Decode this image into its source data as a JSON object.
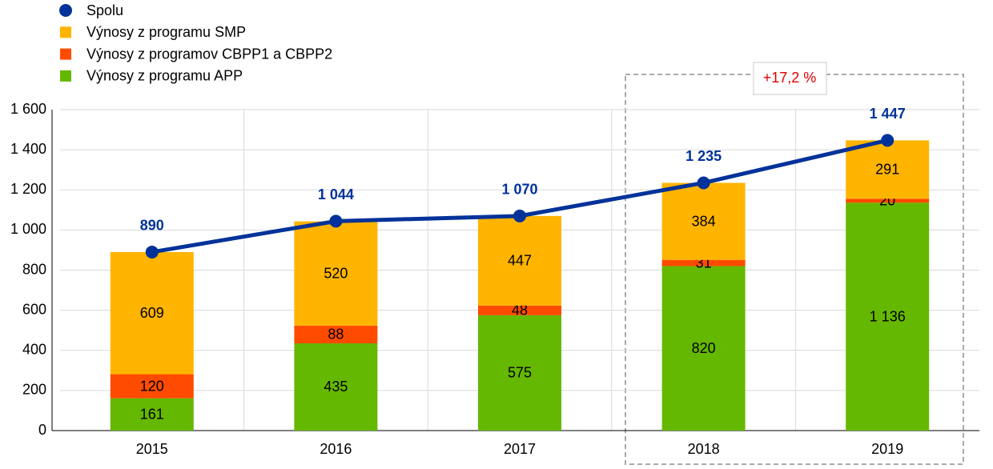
{
  "chart_data": {
    "type": "bar",
    "stacked": true,
    "categories": [
      "2015",
      "2016",
      "2017",
      "2018",
      "2019"
    ],
    "series": [
      {
        "name": "Spolu",
        "type": "line",
        "color": "#003299",
        "values": [
          890,
          1044,
          1070,
          1235,
          1447
        ],
        "value_labels": [
          "890",
          "1 044",
          "1 070",
          "1 235",
          "1 447"
        ]
      },
      {
        "name": "Výnosy z programu SMP",
        "color": "#ffb400",
        "values": [
          609,
          520,
          447,
          384,
          291
        ]
      },
      {
        "name": "Výnosy z programov CBPP1 a CBPP2",
        "color": "#ff4b00",
        "values": [
          120,
          88,
          48,
          31,
          20
        ]
      },
      {
        "name": "Výnosy z programu APP",
        "color": "#65b800",
        "values": [
          161,
          435,
          575,
          820,
          1136
        ],
        "value_labels": [
          "161",
          "435",
          "575",
          "820",
          "1 136"
        ]
      }
    ],
    "ylim": [
      0,
      1600
    ],
    "yticks": [
      0,
      200,
      400,
      600,
      800,
      {
        "value": 1000,
        "label": "1 000"
      },
      {
        "value": 1200,
        "label": "1 200"
      },
      {
        "value": 1400,
        "label": "1 400"
      },
      {
        "value": 1600,
        "label": "1 600"
      }
    ],
    "grid": true,
    "annotation": "+17,2 %"
  }
}
